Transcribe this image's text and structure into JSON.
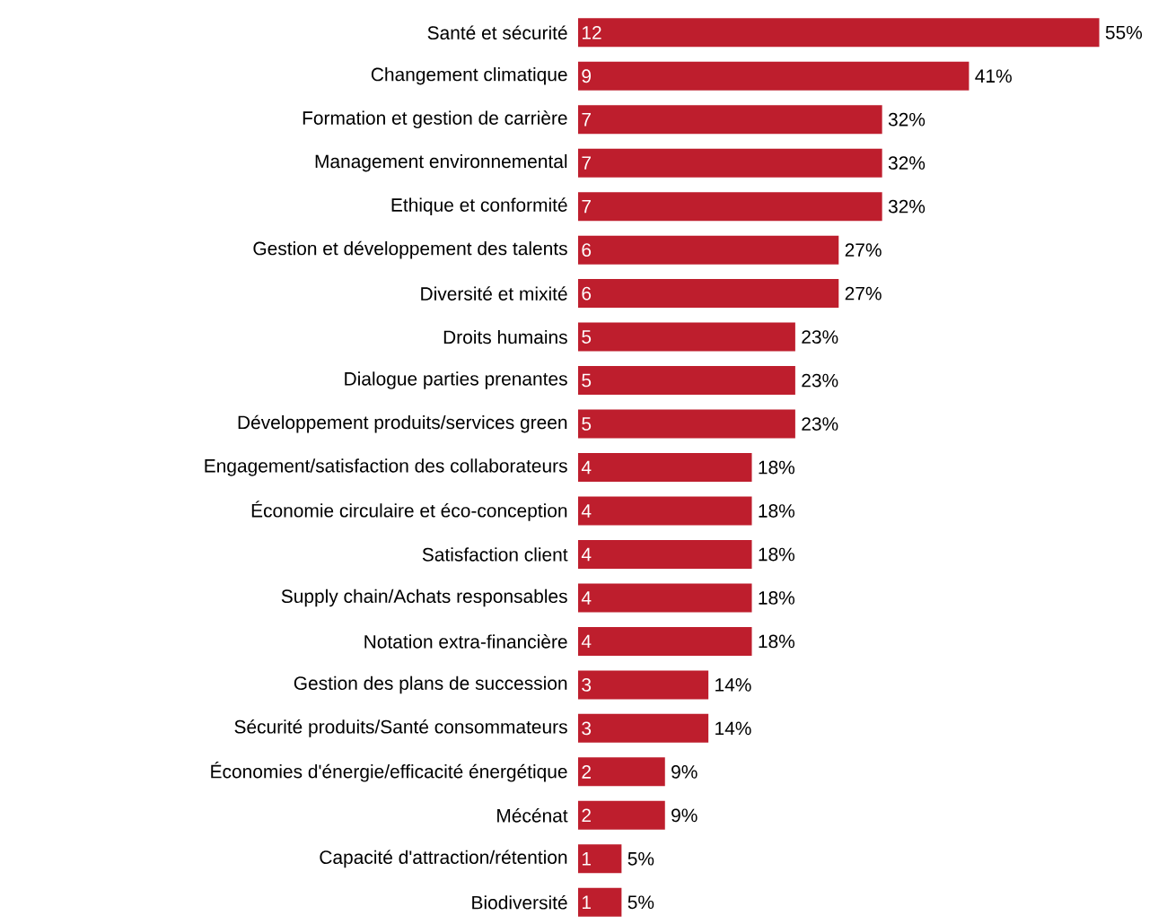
{
  "chart_data": {
    "type": "bar",
    "orientation": "horizontal",
    "color": "#be1e2d",
    "data_labels": true,
    "categories": [
      "Santé et sécurité",
      "Changement climatique",
      "Formation et gestion de carrière",
      "Management environnemental",
      "Ethique et conformité",
      "Gestion et développement des talents",
      "Diversité et mixité",
      "Droits humains",
      "Dialogue parties prenantes",
      "Développement produits/services green",
      "Engagement/satisfaction des collaborateurs",
      "Économie circulaire et éco-conception",
      "Satisfaction client",
      "Supply chain/Achats responsables",
      "Notation extra-financière",
      "Gestion des plans de succession",
      "Sécurité produits/Santé consommateurs",
      "Économies d'énergie/efficacité énergétique",
      "Mécénat",
      "Capacité d'attraction/rétention",
      "Biodiversité"
    ],
    "values": [
      12,
      9,
      7,
      7,
      7,
      6,
      6,
      5,
      5,
      5,
      4,
      4,
      4,
      4,
      4,
      3,
      3,
      2,
      2,
      1,
      1
    ],
    "annotations": [
      {
        "text": "55%",
        "x": 12,
        "y": "Santé et sécurité"
      },
      {
        "text": "41%",
        "x": 9,
        "y": "Changement climatique"
      },
      {
        "text": "32%",
        "x": 7,
        "y": "Formation et gestion de carrière"
      },
      {
        "text": "32%",
        "x": 7,
        "y": "Management environnemental"
      },
      {
        "text": "32%",
        "x": 7,
        "y": "Ethique et conformité"
      },
      {
        "text": "27%",
        "x": 6,
        "y": "Gestion et développement des talents"
      },
      {
        "text": "27%",
        "x": 6,
        "y": "Diversité et mixité"
      },
      {
        "text": "23%",
        "x": 5,
        "y": "Droits humains"
      },
      {
        "text": "23%",
        "x": 5,
        "y": "Dialogue parties prenantes"
      },
      {
        "text": "23%",
        "x": 5,
        "y": "Développement produits/services green"
      },
      {
        "text": "18%",
        "x": 4,
        "y": "Engagement/satisfaction des collaborateurs"
      },
      {
        "text": "18%",
        "x": 4,
        "y": "Économie circulaire et éco-conception"
      },
      {
        "text": "18%",
        "x": 4,
        "y": "Satisfaction client"
      },
      {
        "text": "18%",
        "x": 4,
        "y": "Supply chain/Achats responsables"
      },
      {
        "text": "18%",
        "x": 4,
        "y": "Notation extra-financière"
      },
      {
        "text": "14%",
        "x": 3,
        "y": "Gestion des plans de succession"
      },
      {
        "text": "14%",
        "x": 3,
        "y": "Sécurité produits/Santé consommateurs"
      },
      {
        "text": "9%",
        "x": 2,
        "y": "Économies d'énergie/efficacité énergétique"
      },
      {
        "text": "9%",
        "x": 2,
        "y": "Mécénat"
      },
      {
        "text": "5%",
        "x": 1,
        "y": "Capacité d'attraction/rétention"
      },
      {
        "text": "5%",
        "x": 1,
        "y": "Biodiversité"
      }
    ]
  }
}
